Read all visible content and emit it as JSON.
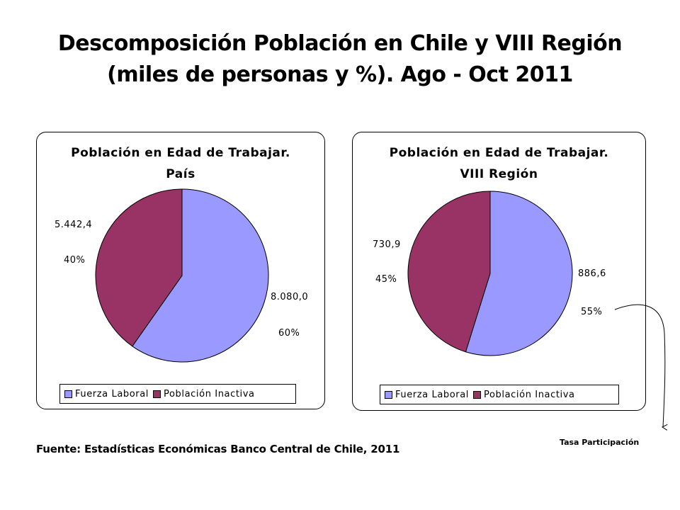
{
  "slide": {
    "title_line1": "Descomposición Población en Chile y VIII Región",
    "title_line2": "(miles de personas y %). Ago - Oct 2011",
    "source": "Fuente: Estadísticas Económicas Banco Central de Chile, 2011",
    "annotation": "Tasa Participación"
  },
  "colors": {
    "fuerza_laboral": "#9999ff",
    "poblacion_inactiva": "#993366",
    "outline": "#000000"
  },
  "chart_data": [
    {
      "type": "pie",
      "title_line1": "Población en Edad de Trabajar.",
      "title_line2": "País",
      "categories": [
        "Fuerza Laboral",
        "Población Inactiva"
      ],
      "values": [
        8080.0,
        5442.4
      ],
      "value_labels": [
        "8.080,0",
        "5.442,4"
      ],
      "percent_labels": [
        "60%",
        "40%"
      ],
      "legend": [
        "Fuerza Laboral",
        "Población Inactiva"
      ],
      "legend_position": "bottom"
    },
    {
      "type": "pie",
      "title_line1": "Población en Edad de Trabajar.",
      "title_line2": "VIII Región",
      "categories": [
        "Fuerza Laboral",
        "Población Inactiva"
      ],
      "values": [
        886.6,
        730.9
      ],
      "value_labels": [
        "886,6",
        "730,9"
      ],
      "percent_labels": [
        "55%",
        "45%"
      ],
      "legend": [
        "Fuerza Laboral",
        "Población Inactiva"
      ],
      "legend_position": "bottom"
    }
  ]
}
